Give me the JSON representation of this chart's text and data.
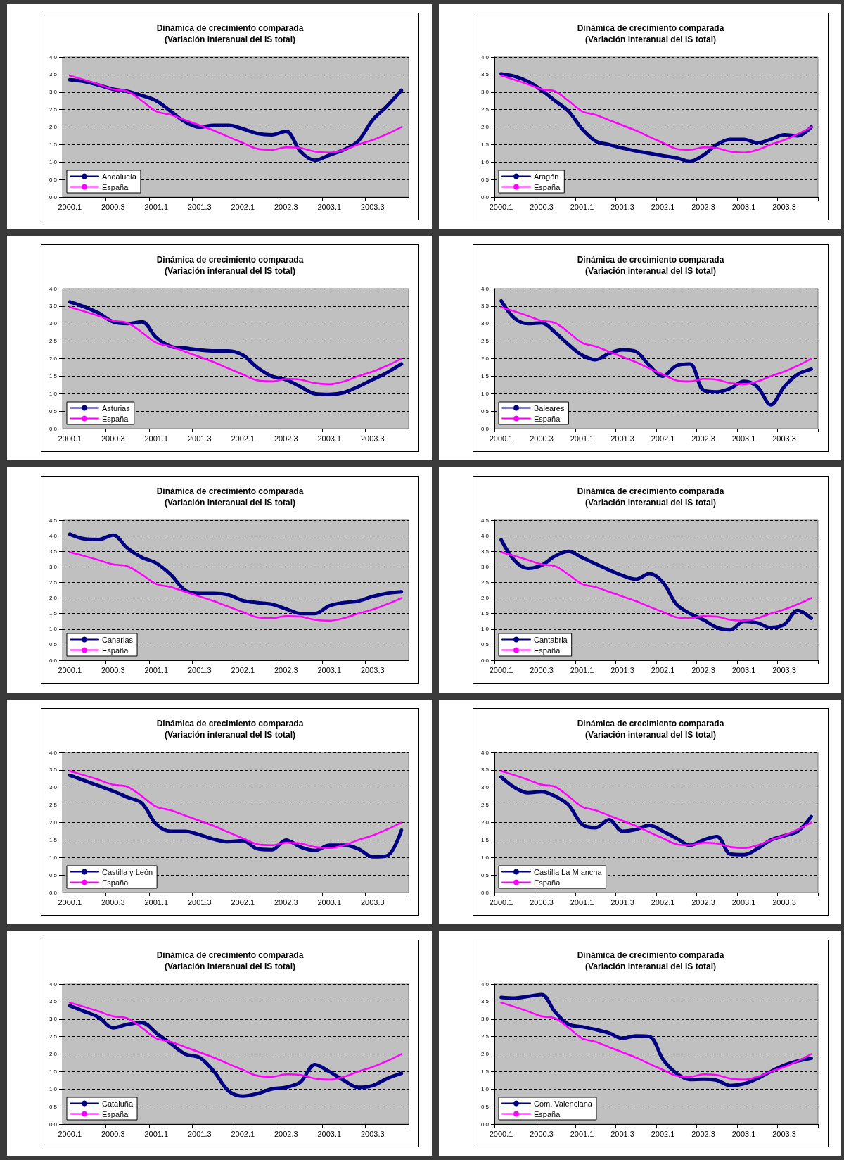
{
  "chart_data": [
    {
      "type": "line",
      "title": "Dinámica de crecimiento comparada",
      "subtitle": "(Variación interanual del IS total)",
      "categories": [
        "2000.1",
        null,
        null,
        "2000.3",
        null,
        null,
        "2001.1",
        null,
        null,
        "2001.3",
        null,
        null,
        "2002.1",
        null,
        null,
        "2002.3",
        null,
        null,
        "2003.1",
        null,
        null,
        "2003.3",
        null,
        null
      ],
      "ylim": [
        0,
        4
      ],
      "yticks": [
        {
          "value": 0,
          "label": "0.0"
        },
        {
          "value": 0.5,
          "label": "0.5"
        },
        {
          "value": 1,
          "label": "1.0"
        },
        {
          "value": 1.5,
          "label": "1.5"
        },
        {
          "value": 2,
          "label": "2.0"
        },
        {
          "value": 2.5,
          "label": "2.5"
        },
        {
          "value": 3,
          "label": "3.0"
        },
        {
          "value": 3.5,
          "label": "3.5"
        },
        {
          "value": 4,
          "label": "4.0"
        }
      ],
      "grid": "y",
      "legend": "bottom left",
      "marker": "none",
      "series": [
        {
          "name": "Andalucía",
          "color": "#000080",
          "values": [
            3.35,
            3.3,
            3.2,
            3.08,
            3.02,
            2.9,
            2.75,
            2.45,
            2.15,
            2.0,
            2.05,
            2.05,
            1.95,
            1.82,
            1.78,
            1.88,
            1.3,
            1.05,
            1.2,
            1.35,
            1.6,
            2.2,
            2.6,
            3.05
          ]
        },
        {
          "name": "España",
          "color": "#ff00ff",
          "values": [
            3.47,
            3.35,
            3.22,
            3.08,
            3.02,
            2.75,
            2.45,
            2.35,
            2.2,
            2.05,
            1.9,
            1.72,
            1.55,
            1.38,
            1.35,
            1.42,
            1.4,
            1.3,
            1.27,
            1.35,
            1.5,
            1.63,
            1.8,
            2.0
          ]
        }
      ]
    },
    {
      "type": "line",
      "title": "Dinámica de crecimiento comparada",
      "subtitle": "(Variación interanual del IS total)",
      "categories": [
        "2000.1",
        null,
        null,
        "2000.3",
        null,
        null,
        "2001.1",
        null,
        null,
        "2001.3",
        null,
        null,
        "2002.1",
        null,
        null,
        "2002.3",
        null,
        null,
        "2003.1",
        null,
        null,
        "2003.3",
        null,
        null
      ],
      "ylim": [
        0,
        4
      ],
      "yticks": [
        {
          "value": 0,
          "label": "0.0"
        },
        {
          "value": 0.5,
          "label": "0.5"
        },
        {
          "value": 1,
          "label": "1.0"
        },
        {
          "value": 1.5,
          "label": "1.5"
        },
        {
          "value": 2,
          "label": "2.0"
        },
        {
          "value": 2.5,
          "label": "2.5"
        },
        {
          "value": 3,
          "label": "3.0"
        },
        {
          "value": 3.5,
          "label": "3.5"
        },
        {
          "value": 4,
          "label": "4.0"
        }
      ],
      "grid": "y",
      "legend": "bottom left",
      "marker": "none",
      "series": [
        {
          "name": "Aragón",
          "color": "#000080",
          "values": [
            3.52,
            3.45,
            3.3,
            3.05,
            2.75,
            2.45,
            1.95,
            1.6,
            1.5,
            1.4,
            1.32,
            1.25,
            1.18,
            1.12,
            1.02,
            1.2,
            1.5,
            1.65,
            1.65,
            1.55,
            1.65,
            1.78,
            1.75,
            2.0
          ]
        },
        {
          "name": "España",
          "color": "#ff00ff",
          "values": [
            3.47,
            3.35,
            3.22,
            3.08,
            3.02,
            2.75,
            2.45,
            2.35,
            2.2,
            2.05,
            1.9,
            1.72,
            1.55,
            1.38,
            1.35,
            1.42,
            1.4,
            1.3,
            1.27,
            1.35,
            1.5,
            1.63,
            1.8,
            2.0
          ]
        }
      ]
    },
    {
      "type": "line",
      "title": "Dinámica de crecimiento comparada",
      "subtitle": "(Variación interanual del IS total)",
      "categories": [
        "2000.1",
        null,
        null,
        "2000.3",
        null,
        null,
        "2001.1",
        null,
        null,
        "2001.3",
        null,
        null,
        "2002.1",
        null,
        null,
        "2002.3",
        null,
        null,
        "2003.1",
        null,
        null,
        "2003.3",
        null,
        null
      ],
      "ylim": [
        0,
        4
      ],
      "yticks": [
        {
          "value": 0,
          "label": "0.0"
        },
        {
          "value": 0.5,
          "label": "0.5"
        },
        {
          "value": 1,
          "label": "1.0"
        },
        {
          "value": 1.5,
          "label": "1.5"
        },
        {
          "value": 2,
          "label": "2.0"
        },
        {
          "value": 2.5,
          "label": "2.5"
        },
        {
          "value": 3,
          "label": "3.0"
        },
        {
          "value": 3.5,
          "label": "3.5"
        },
        {
          "value": 4,
          "label": "4.0"
        }
      ],
      "grid": "y",
      "legend": "bottom left",
      "marker": "none",
      "series": [
        {
          "name": "Asturias",
          "color": "#000080",
          "values": [
            3.62,
            3.48,
            3.3,
            3.05,
            3.0,
            3.05,
            2.6,
            2.35,
            2.3,
            2.25,
            2.22,
            2.22,
            2.1,
            1.75,
            1.5,
            1.4,
            1.2,
            1.0,
            0.98,
            1.03,
            1.2,
            1.4,
            1.6,
            1.85
          ]
        },
        {
          "name": "España",
          "color": "#ff00ff",
          "values": [
            3.47,
            3.35,
            3.22,
            3.08,
            3.02,
            2.75,
            2.45,
            2.35,
            2.2,
            2.05,
            1.9,
            1.72,
            1.55,
            1.38,
            1.35,
            1.42,
            1.4,
            1.3,
            1.27,
            1.35,
            1.5,
            1.63,
            1.8,
            2.0
          ]
        }
      ]
    },
    {
      "type": "line",
      "title": "Dinámica de crecimiento comparada",
      "subtitle": "(Variación interanual del IS total)",
      "categories": [
        "2000.1",
        null,
        null,
        "2000.3",
        null,
        null,
        "2001.1",
        null,
        null,
        "2001.3",
        null,
        null,
        "2002.1",
        null,
        null,
        "2002.3",
        null,
        null,
        "2003.1",
        null,
        null,
        "2003.3",
        null,
        null
      ],
      "ylim": [
        0,
        4
      ],
      "yticks": [
        {
          "value": 0,
          "label": "0.0"
        },
        {
          "value": 0.5,
          "label": "0.5"
        },
        {
          "value": 1,
          "label": "1.0"
        },
        {
          "value": 1.5,
          "label": "1.5"
        },
        {
          "value": 2,
          "label": "2.0"
        },
        {
          "value": 2.5,
          "label": "2.5"
        },
        {
          "value": 3,
          "label": "3.0"
        },
        {
          "value": 3.5,
          "label": "3.5"
        },
        {
          "value": 4,
          "label": "4.0"
        }
      ],
      "grid": "y",
      "legend": "bottom left",
      "marker": "none",
      "series": [
        {
          "name": "Baleares",
          "color": "#000080",
          "values": [
            3.65,
            3.15,
            3.0,
            3.02,
            2.75,
            2.4,
            2.1,
            1.97,
            2.15,
            2.25,
            2.2,
            1.8,
            1.5,
            1.8,
            1.85,
            1.1,
            1.05,
            1.15,
            1.35,
            1.2,
            0.68,
            1.2,
            1.55,
            1.7
          ]
        },
        {
          "name": "España",
          "color": "#ff00ff",
          "values": [
            3.47,
            3.35,
            3.22,
            3.08,
            3.02,
            2.75,
            2.45,
            2.35,
            2.2,
            2.05,
            1.9,
            1.72,
            1.55,
            1.38,
            1.35,
            1.42,
            1.4,
            1.3,
            1.27,
            1.35,
            1.5,
            1.63,
            1.8,
            2.0
          ]
        }
      ]
    },
    {
      "type": "line",
      "title": "Dinámica de crecimiento comparada",
      "subtitle": "(Variación interanual del IS total)",
      "categories": [
        "2000.1",
        null,
        null,
        "2000.3",
        null,
        null,
        "2001.1",
        null,
        null,
        "2001.3",
        null,
        null,
        "2002.1",
        null,
        null,
        "2002.3",
        null,
        null,
        "2003.1",
        null,
        null,
        "2003.3",
        null,
        null
      ],
      "ylim": [
        0,
        4.5
      ],
      "yticks": [
        {
          "value": 0,
          "label": "0.0"
        },
        {
          "value": 0.5,
          "label": "0.5"
        },
        {
          "value": 1,
          "label": "1.0"
        },
        {
          "value": 1.5,
          "label": "1.5"
        },
        {
          "value": 2,
          "label": "2.0"
        },
        {
          "value": 2.5,
          "label": "2.5"
        },
        {
          "value": 3,
          "label": "3.0"
        },
        {
          "value": 3.5,
          "label": "3.5"
        },
        {
          "value": 4,
          "label": "4.0"
        },
        {
          "value": 4.5,
          "label": "4.5"
        }
      ],
      "grid": "y",
      "legend": "bottom left",
      "marker": "none",
      "series": [
        {
          "name": "Canarias",
          "color": "#000080",
          "values": [
            4.05,
            3.9,
            3.88,
            4.02,
            3.6,
            3.3,
            3.12,
            2.75,
            2.25,
            2.15,
            2.15,
            2.1,
            1.92,
            1.85,
            1.8,
            1.65,
            1.5,
            1.5,
            1.75,
            1.85,
            1.9,
            2.05,
            2.15,
            2.2
          ]
        },
        {
          "name": "España",
          "color": "#ff00ff",
          "values": [
            3.47,
            3.35,
            3.22,
            3.08,
            3.02,
            2.75,
            2.45,
            2.35,
            2.2,
            2.05,
            1.9,
            1.72,
            1.55,
            1.38,
            1.35,
            1.42,
            1.4,
            1.3,
            1.27,
            1.35,
            1.5,
            1.63,
            1.8,
            2.0
          ]
        }
      ]
    },
    {
      "type": "line",
      "title": "Dinámica de crecimiento comparada",
      "subtitle": "(Variación interanual del IS total)",
      "categories": [
        "2000.1",
        null,
        null,
        "2000.3",
        null,
        null,
        "2001.1",
        null,
        null,
        "2001.3",
        null,
        null,
        "2002.1",
        null,
        null,
        "2002.3",
        null,
        null,
        "2003.1",
        null,
        null,
        "2003.3",
        null,
        null
      ],
      "ylim": [
        0,
        4.5
      ],
      "yticks": [
        {
          "value": 0,
          "label": "0.0"
        },
        {
          "value": 0.5,
          "label": "0.5"
        },
        {
          "value": 1,
          "label": "1.0"
        },
        {
          "value": 1.5,
          "label": "1.5"
        },
        {
          "value": 2,
          "label": "2.0"
        },
        {
          "value": 2.5,
          "label": "2.5"
        },
        {
          "value": 3,
          "label": "3.0"
        },
        {
          "value": 3.5,
          "label": "3.5"
        },
        {
          "value": 4,
          "label": "4.0"
        },
        {
          "value": 4.5,
          "label": "4.5"
        }
      ],
      "grid": "y",
      "legend": "bottom left",
      "marker": "none",
      "series": [
        {
          "name": "Cantabria",
          "color": "#000080",
          "values": [
            3.87,
            3.2,
            2.95,
            3.05,
            3.35,
            3.5,
            3.3,
            3.1,
            2.9,
            2.72,
            2.6,
            2.78,
            2.5,
            1.8,
            1.5,
            1.3,
            1.05,
            0.98,
            1.25,
            1.2,
            1.05,
            1.15,
            1.6,
            1.35
          ]
        },
        {
          "name": "España",
          "color": "#ff00ff",
          "values": [
            3.47,
            3.35,
            3.22,
            3.08,
            3.02,
            2.75,
            2.45,
            2.35,
            2.2,
            2.05,
            1.9,
            1.72,
            1.55,
            1.38,
            1.35,
            1.42,
            1.4,
            1.3,
            1.27,
            1.35,
            1.5,
            1.63,
            1.8,
            2.0
          ]
        }
      ]
    },
    {
      "type": "line",
      "title": "Dinámica de crecimiento comparada",
      "subtitle": "(Variación interanual del IS total)",
      "categories": [
        "2000.1",
        null,
        null,
        "2000.3",
        null,
        null,
        "2001.1",
        null,
        null,
        "2001.3",
        null,
        null,
        "2002.1",
        null,
        null,
        "2002.3",
        null,
        null,
        "2003.1",
        null,
        null,
        "2003.3",
        null,
        null
      ],
      "ylim": [
        0,
        4
      ],
      "yticks": [
        {
          "value": 0,
          "label": "0.0"
        },
        {
          "value": 0.5,
          "label": "0.5"
        },
        {
          "value": 1,
          "label": "1.0"
        },
        {
          "value": 1.5,
          "label": "1.5"
        },
        {
          "value": 2,
          "label": "2.0"
        },
        {
          "value": 2.5,
          "label": "2.5"
        },
        {
          "value": 3,
          "label": "3.0"
        },
        {
          "value": 3.5,
          "label": "3.5"
        },
        {
          "value": 4,
          "label": "4.0"
        }
      ],
      "grid": "y",
      "legend": "bottom left",
      "marker": "none",
      "series": [
        {
          "name": "Castilla y León",
          "color": "#000080",
          "values": [
            3.35,
            3.2,
            3.05,
            2.9,
            2.72,
            2.55,
            1.95,
            1.75,
            1.75,
            1.65,
            1.52,
            1.45,
            1.48,
            1.25,
            1.22,
            1.5,
            1.3,
            1.2,
            1.35,
            1.35,
            1.25,
            1.02,
            1.05,
            1.78
          ]
        },
        {
          "name": "España",
          "color": "#ff00ff",
          "values": [
            3.47,
            3.35,
            3.22,
            3.08,
            3.02,
            2.75,
            2.45,
            2.35,
            2.2,
            2.05,
            1.9,
            1.72,
            1.55,
            1.38,
            1.35,
            1.42,
            1.4,
            1.3,
            1.27,
            1.35,
            1.5,
            1.63,
            1.8,
            2.0
          ]
        }
      ]
    },
    {
      "type": "line",
      "title": "Dinámica de crecimiento comparada",
      "subtitle": "(Variación interanual del IS total)",
      "categories": [
        "2000.1",
        null,
        null,
        "2000.3",
        null,
        null,
        "2001.1",
        null,
        null,
        "2001.3",
        null,
        null,
        "2002.1",
        null,
        null,
        "2002.3",
        null,
        null,
        "2003.1",
        null,
        null,
        "2003.3",
        null,
        null
      ],
      "ylim": [
        0,
        4
      ],
      "yticks": [
        {
          "value": 0,
          "label": "0.0"
        },
        {
          "value": 0.5,
          "label": "0.5"
        },
        {
          "value": 1,
          "label": "1.0"
        },
        {
          "value": 1.5,
          "label": "1.5"
        },
        {
          "value": 2,
          "label": "2.0"
        },
        {
          "value": 2.5,
          "label": "2.5"
        },
        {
          "value": 3,
          "label": "3.0"
        },
        {
          "value": 3.5,
          "label": "3.5"
        },
        {
          "value": 4,
          "label": "4.0"
        }
      ],
      "grid": "y",
      "legend": "bottom left",
      "marker": "none",
      "series": [
        {
          "name": "Castilla La M ancha",
          "color": "#000080",
          "values": [
            3.3,
            3.0,
            2.85,
            2.88,
            2.75,
            2.5,
            1.95,
            1.85,
            2.08,
            1.75,
            1.8,
            1.92,
            1.75,
            1.55,
            1.35,
            1.5,
            1.6,
            1.1,
            1.08,
            1.25,
            1.5,
            1.62,
            1.75,
            2.17
          ]
        },
        {
          "name": "España",
          "color": "#ff00ff",
          "values": [
            3.47,
            3.35,
            3.22,
            3.08,
            3.02,
            2.75,
            2.45,
            2.35,
            2.2,
            2.05,
            1.9,
            1.72,
            1.55,
            1.38,
            1.35,
            1.42,
            1.4,
            1.3,
            1.27,
            1.35,
            1.5,
            1.63,
            1.8,
            2.0
          ]
        }
      ]
    },
    {
      "type": "line",
      "title": "Dinámica de crecimiento comparada",
      "subtitle": "(Variación interanual del IS total)",
      "categories": [
        "2000.1",
        null,
        null,
        "2000.3",
        null,
        null,
        "2001.1",
        null,
        null,
        "2001.3",
        null,
        null,
        "2002.1",
        null,
        null,
        "2002.3",
        null,
        null,
        "2003.1",
        null,
        null,
        "2003.3",
        null,
        null
      ],
      "ylim": [
        0,
        4
      ],
      "yticks": [
        {
          "value": 0,
          "label": "0.0"
        },
        {
          "value": 0.5,
          "label": "0.5"
        },
        {
          "value": 1,
          "label": "1.0"
        },
        {
          "value": 1.5,
          "label": "1.5"
        },
        {
          "value": 2,
          "label": "2.0"
        },
        {
          "value": 2.5,
          "label": "2.5"
        },
        {
          "value": 3,
          "label": "3.0"
        },
        {
          "value": 3.5,
          "label": "3.5"
        },
        {
          "value": 4,
          "label": "4.0"
        }
      ],
      "grid": "y",
      "legend": "bottom left",
      "marker": "none",
      "series": [
        {
          "name": "Cataluña",
          "color": "#000080",
          "values": [
            3.38,
            3.22,
            3.05,
            2.75,
            2.85,
            2.9,
            2.6,
            2.3,
            2.0,
            1.9,
            1.5,
            0.95,
            0.8,
            0.87,
            1.0,
            1.05,
            1.2,
            1.7,
            1.5,
            1.25,
            1.05,
            1.1,
            1.3,
            1.45
          ]
        },
        {
          "name": "España",
          "color": "#ff00ff",
          "values": [
            3.47,
            3.35,
            3.22,
            3.08,
            3.02,
            2.75,
            2.45,
            2.35,
            2.2,
            2.05,
            1.9,
            1.72,
            1.55,
            1.38,
            1.35,
            1.42,
            1.4,
            1.3,
            1.27,
            1.35,
            1.5,
            1.63,
            1.8,
            2.0
          ]
        }
      ]
    },
    {
      "type": "line",
      "title": "Dinámica de crecimiento comparada",
      "subtitle": "(Variación interanual del IS total)",
      "categories": [
        "2000.1",
        null,
        null,
        "2000.3",
        null,
        null,
        "2001.1",
        null,
        null,
        "2001.3",
        null,
        null,
        "2002.1",
        null,
        null,
        "2002.3",
        null,
        null,
        "2003.1",
        null,
        null,
        "2003.3",
        null,
        null
      ],
      "ylim": [
        0,
        4
      ],
      "yticks": [
        {
          "value": 0,
          "label": "0.0"
        },
        {
          "value": 0.5,
          "label": "0.5"
        },
        {
          "value": 1,
          "label": "1.0"
        },
        {
          "value": 1.5,
          "label": "1.5"
        },
        {
          "value": 2,
          "label": "2.0"
        },
        {
          "value": 2.5,
          "label": "2.5"
        },
        {
          "value": 3,
          "label": "3.0"
        },
        {
          "value": 3.5,
          "label": "3.5"
        },
        {
          "value": 4,
          "label": "4.0"
        }
      ],
      "grid": "y",
      "legend": "bottom left",
      "marker": "none",
      "series": [
        {
          "name": "Com. Valenciana",
          "color": "#000080",
          "values": [
            3.62,
            3.6,
            3.65,
            3.7,
            3.2,
            2.85,
            2.78,
            2.7,
            2.6,
            2.45,
            2.52,
            2.5,
            1.85,
            1.45,
            1.27,
            1.28,
            1.25,
            1.1,
            1.15,
            1.3,
            1.5,
            1.68,
            1.8,
            1.88
          ]
        },
        {
          "name": "España",
          "color": "#ff00ff",
          "values": [
            3.47,
            3.35,
            3.22,
            3.08,
            3.02,
            2.75,
            2.45,
            2.35,
            2.2,
            2.05,
            1.9,
            1.72,
            1.55,
            1.38,
            1.35,
            1.42,
            1.4,
            1.3,
            1.27,
            1.35,
            1.5,
            1.63,
            1.8,
            2.0
          ]
        }
      ]
    }
  ]
}
